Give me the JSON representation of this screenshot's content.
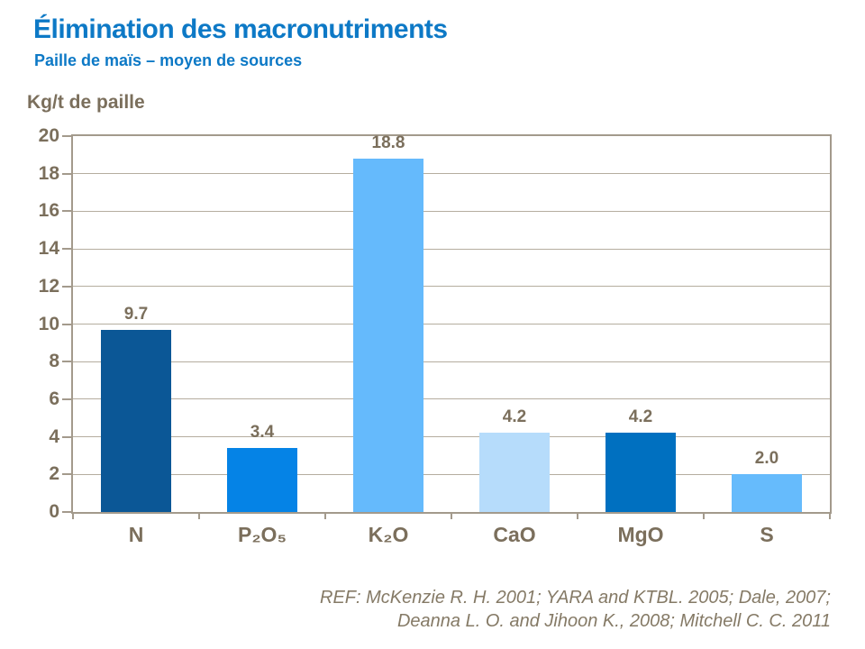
{
  "header": {
    "title": "Élimination des macronutriments",
    "subtitle": "Paille de maïs – moyen de sources"
  },
  "chart_data": {
    "type": "bar",
    "title": "Élimination des macronutriments",
    "subtitle": "Paille de maïs – moyen de sources",
    "ylabel": "Kg/t de paille",
    "xlabel": "",
    "categories": [
      "N",
      "P₂O₅",
      "K₂O",
      "CaO",
      "MgO",
      "S"
    ],
    "values": [
      9.7,
      3.4,
      18.8,
      4.2,
      4.2,
      2.0
    ],
    "value_labels": [
      "9.7",
      "3.4",
      "18.8",
      "4.2",
      "4.2",
      "2.0"
    ],
    "bar_colors": [
      "#0b5796",
      "#0583e6",
      "#65bafc",
      "#b6dcfb",
      "#0070c0",
      "#66bbfc"
    ],
    "ylim": [
      0,
      20
    ],
    "yticks": [
      0,
      2,
      4,
      6,
      8,
      10,
      12,
      14,
      16,
      18,
      20
    ],
    "grid": true,
    "legend_position": "none"
  },
  "footer": {
    "line1": "REF: McKenzie R. H. 2001; YARA and KTBL. 2005; Dale, 2007;",
    "line2": "Deanna L. O. and Jihoon K.,  2008; Mitchell C. C. 2011"
  },
  "colors": {
    "title_blue": "#0d79c6",
    "text_brown": "#7b6f5c",
    "axis_line": "#a39a8c",
    "gridline": "#b5ad9f",
    "background": "#ffffff"
  }
}
